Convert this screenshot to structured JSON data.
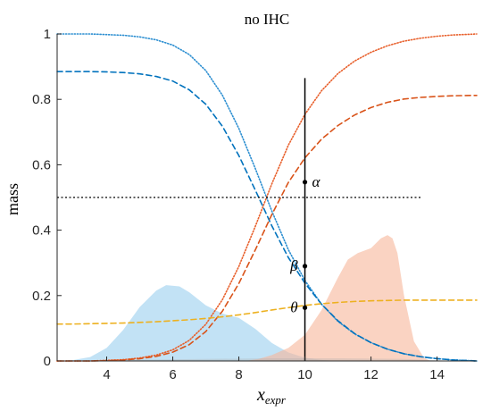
{
  "chart_data": {
    "type": "line",
    "title": "no IHC",
    "xlabel_main": "x",
    "xlabel_sub": "expr",
    "ylabel": "mass",
    "xlim": [
      2.5,
      15.2
    ],
    "ylim": [
      0,
      1
    ],
    "xticks": [
      4,
      6,
      8,
      10,
      12,
      14
    ],
    "yticks": [
      0,
      0.2,
      0.4,
      0.6,
      0.8,
      1
    ],
    "yticklabels": [
      "0",
      "0.2",
      "0.4",
      "0.6",
      "0.8",
      "1"
    ],
    "grid": false,
    "x_sample": [
      2.5,
      3.0,
      3.5,
      4.0,
      4.5,
      5.0,
      5.5,
      6.0,
      6.5,
      7.0,
      7.5,
      8.0,
      8.5,
      9.0,
      9.5,
      10.0,
      10.5,
      11.0,
      11.5,
      12.0,
      12.5,
      13.0,
      13.5,
      14.0,
      14.5,
      15.0,
      15.2
    ],
    "series": [
      {
        "style": "dotted",
        "color": "#2d8fd1",
        "y": [
          1.0,
          1.0,
          1.0,
          0.998,
          0.996,
          0.991,
          0.982,
          0.966,
          0.937,
          0.888,
          0.813,
          0.711,
          0.588,
          0.458,
          0.34,
          0.246,
          0.174,
          0.121,
          0.083,
          0.056,
          0.036,
          0.022,
          0.013,
          0.007,
          0.003,
          0.001,
          0.0
        ]
      },
      {
        "style": "dashed",
        "color": "#0072bd",
        "y": [
          0.885,
          0.885,
          0.885,
          0.884,
          0.882,
          0.878,
          0.87,
          0.856,
          0.829,
          0.785,
          0.718,
          0.628,
          0.522,
          0.413,
          0.316,
          0.238,
          0.174,
          0.123,
          0.084,
          0.056,
          0.036,
          0.022,
          0.013,
          0.007,
          0.003,
          0.001,
          0.0
        ]
      },
      {
        "style": "dotted",
        "color": "#e8602c",
        "y": [
          0.0,
          0.0,
          0.0,
          0.002,
          0.004,
          0.009,
          0.018,
          0.034,
          0.063,
          0.112,
          0.187,
          0.289,
          0.412,
          0.542,
          0.66,
          0.754,
          0.826,
          0.879,
          0.917,
          0.944,
          0.964,
          0.978,
          0.987,
          0.993,
          0.997,
          0.999,
          1.0
        ]
      },
      {
        "style": "dashed",
        "color": "#d95319",
        "y": [
          0.0,
          0.0,
          0.0,
          0.001,
          0.003,
          0.007,
          0.014,
          0.027,
          0.05,
          0.09,
          0.152,
          0.237,
          0.34,
          0.448,
          0.546,
          0.621,
          0.678,
          0.72,
          0.752,
          0.775,
          0.791,
          0.801,
          0.806,
          0.809,
          0.811,
          0.812,
          0.812
        ]
      },
      {
        "style": "dashed",
        "color": "#edb120",
        "y": [
          0.113,
          0.113,
          0.114,
          0.115,
          0.116,
          0.118,
          0.12,
          0.123,
          0.126,
          0.13,
          0.135,
          0.141,
          0.148,
          0.156,
          0.163,
          0.17,
          0.175,
          0.179,
          0.182,
          0.184,
          0.185,
          0.186,
          0.186,
          0.186,
          0.186,
          0.186,
          0.186
        ]
      }
    ],
    "areas": [
      {
        "color": "#8fcbec",
        "opacity": 0.55,
        "x": [
          2.5,
          3.0,
          3.5,
          4.0,
          4.5,
          5.0,
          5.5,
          5.8,
          6.2,
          6.5,
          7.0,
          7.5,
          8.0,
          8.5,
          9.0,
          9.5,
          10.0,
          10.5,
          11.0
        ],
        "y": [
          0.0,
          0.003,
          0.012,
          0.04,
          0.095,
          0.165,
          0.215,
          0.232,
          0.228,
          0.21,
          0.17,
          0.145,
          0.132,
          0.098,
          0.055,
          0.026,
          0.01,
          0.003,
          0.0
        ]
      },
      {
        "color": "#f6b59a",
        "opacity": 0.6,
        "x": [
          8.2,
          8.6,
          9.0,
          9.5,
          10.0,
          10.5,
          11.0,
          11.3,
          11.6,
          12.0,
          12.3,
          12.5,
          12.65,
          12.8,
          13.0,
          13.3,
          13.6,
          13.8
        ],
        "y": [
          0.0,
          0.006,
          0.018,
          0.04,
          0.08,
          0.155,
          0.255,
          0.31,
          0.33,
          0.345,
          0.375,
          0.385,
          0.375,
          0.33,
          0.2,
          0.06,
          0.01,
          0.0
        ]
      },
      {
        "color": "#a9a9a9",
        "opacity": 0.35,
        "x": [
          3.0,
          5.0,
          7.0,
          9.0,
          11.0,
          13.0,
          14.0,
          14.5
        ],
        "y": [
          0.0,
          0.004,
          0.006,
          0.008,
          0.008,
          0.006,
          0.002,
          0.0
        ]
      }
    ],
    "hline": {
      "y": 0.5,
      "x_from": 2.5,
      "x_to": 13.5,
      "style": "dotted",
      "color": "#000000"
    },
    "vline": {
      "x": 10,
      "y_from": 0,
      "y_to": 0.865,
      "color": "#000000"
    },
    "annotations": [
      {
        "label": "α",
        "x": 10,
        "y": 0.547,
        "side": "right"
      },
      {
        "label": "β",
        "x": 10,
        "y": 0.29,
        "side": "left"
      },
      {
        "label": "θ",
        "x": 10,
        "y": 0.163,
        "side": "left"
      }
    ]
  }
}
